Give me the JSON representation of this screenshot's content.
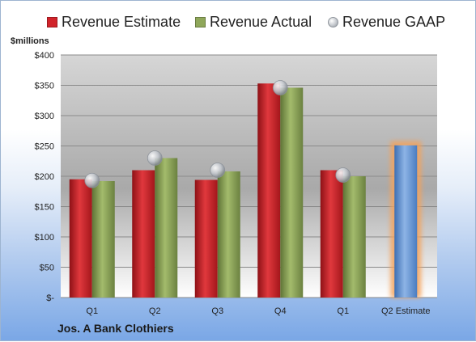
{
  "chart_data": {
    "type": "bar",
    "title": "",
    "xlabel": "",
    "ylabel": "$millions",
    "footer": "Jos. A Bank Clothiers",
    "categories": [
      "Q1",
      "Q2",
      "Q3",
      "Q4",
      "Q1",
      "Q2 Estimate"
    ],
    "ylim": [
      0,
      400
    ],
    "yticks": [
      0,
      50,
      100,
      150,
      200,
      250,
      300,
      350,
      400
    ],
    "ytick_labels": [
      "$-",
      "$50",
      "$100",
      "$150",
      "$200",
      "$250",
      "$300",
      "$350",
      "$400"
    ],
    "grid": true,
    "legend": "top",
    "series": [
      {
        "name": "Revenue Estimate",
        "kind": "bar",
        "color": "#d1232a",
        "values": [
          195,
          210,
          194,
          353,
          210,
          null
        ]
      },
      {
        "name": "Revenue Actual",
        "kind": "bar",
        "color": "#8fa75a",
        "values": [
          192,
          230,
          208,
          346,
          200,
          null
        ]
      },
      {
        "name": "Revenue GAAP",
        "kind": "marker",
        "color": "#b8bcc2",
        "values": [
          193,
          230,
          210,
          346,
          202,
          null
        ]
      },
      {
        "name": "Q2 Estimate",
        "kind": "bar",
        "color": "#6f9bd6",
        "highlight_color": "#f5a25a",
        "values": [
          null,
          null,
          null,
          null,
          null,
          251
        ]
      }
    ]
  }
}
